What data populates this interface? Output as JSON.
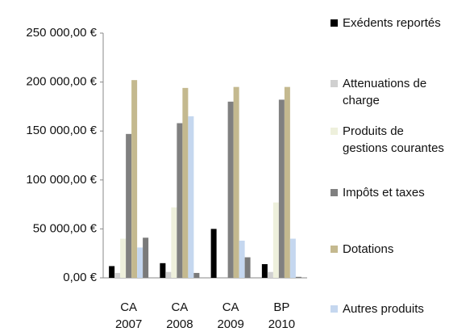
{
  "chart_data": {
    "type": "bar",
    "categories": [
      "CA 2007",
      "CA 2008",
      "CA 2009",
      "BP 2010"
    ],
    "series": [
      {
        "name": "Exédents reportés",
        "color": "#000000",
        "values": [
          12000,
          15000,
          50000,
          14000
        ]
      },
      {
        "name": "Attenuations de charge",
        "color": "#d0d0d0",
        "values": [
          5000,
          6000,
          0,
          6000
        ]
      },
      {
        "name": "Produits de gestions courantes",
        "color": "#eef0dc",
        "values": [
          40000,
          72000,
          0,
          77000
        ]
      },
      {
        "name": "Impôts et taxes",
        "color": "#808080",
        "values": [
          147000,
          158000,
          180000,
          182000
        ]
      },
      {
        "name": "Dotations",
        "color": "#c4b98f",
        "values": [
          202000,
          194000,
          195000,
          195000
        ]
      },
      {
        "name": "Autres produits",
        "color": "#c5d7ef",
        "values": [
          31000,
          165000,
          38000,
          40000
        ]
      },
      {
        "name": null,
        "color": "#7a7a7a",
        "values": [
          41000,
          5000,
          21000,
          1000
        ]
      }
    ],
    "ylim": [
      0,
      250000
    ],
    "yticks": [
      {
        "value": 0,
        "label": "0,00 €"
      },
      {
        "value": 50000,
        "label": "50 000,00 €"
      },
      {
        "value": 100000,
        "label": "100 000,00 €"
      },
      {
        "value": 150000,
        "label": "150 000,00 €"
      },
      {
        "value": 200000,
        "label": "200 000,00 €"
      },
      {
        "value": 250000,
        "label": "250 000,00 €"
      }
    ],
    "grid": false
  }
}
